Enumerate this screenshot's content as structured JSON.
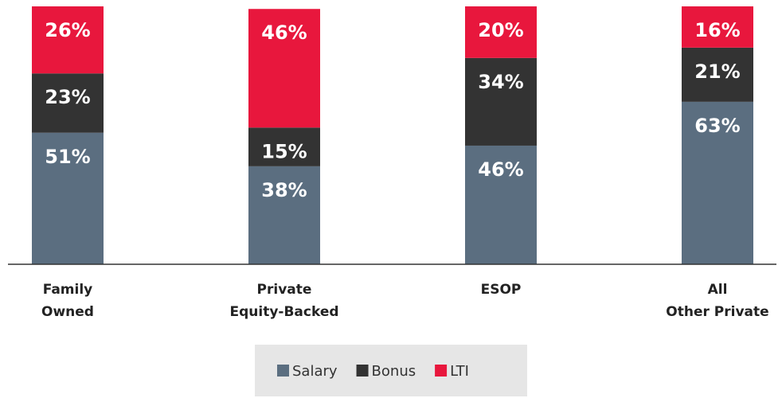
{
  "chart_data": {
    "type": "stacked_bar",
    "categories": [
      "Family\nOwned",
      "Private\nEquity-Backed",
      "ESOP",
      "All\nOther Private"
    ],
    "series": [
      {
        "name": "Salary",
        "color": "#5b6e80",
        "values": [
          51,
          38,
          46,
          63
        ],
        "value_labels": [
          "51%",
          "38%",
          "46%",
          "63%"
        ]
      },
      {
        "name": "Bonus",
        "color": "#333333",
        "values": [
          23,
          15,
          34,
          21
        ],
        "value_labels": [
          "23%",
          "15%",
          "34%",
          "21%"
        ]
      },
      {
        "name": "LTI",
        "color": "#e8173d",
        "values": [
          26,
          46,
          20,
          16
        ],
        "value_labels": [
          "26%",
          "46%",
          "20%",
          "16%"
        ]
      }
    ],
    "ylim": [
      0,
      100
    ],
    "legend": "bottom"
  }
}
